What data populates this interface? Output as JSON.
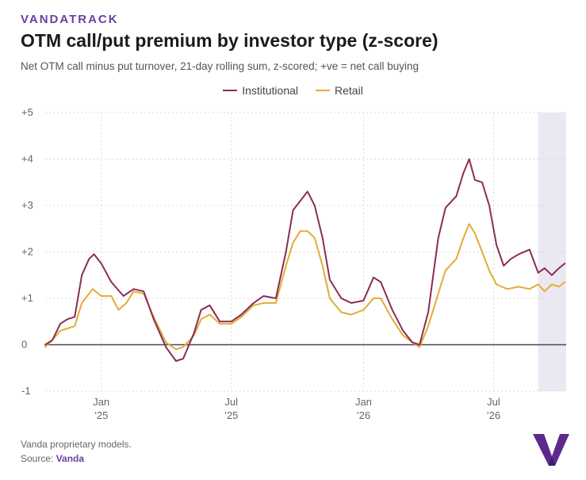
{
  "brand": "VANDATRACK",
  "chart_data": {
    "type": "line",
    "title": "OTM call/put premium by investor type (z-score)",
    "subtitle": "Net OTM call minus put turnover, 21-day rolling sum, z-scored; +ve = net call buying",
    "xlabel": "",
    "ylabel": "",
    "ylim": [
      -1,
      5
    ],
    "yticks": [
      "-1",
      "0",
      "+1",
      "+2",
      "+3",
      "+4",
      "+5"
    ],
    "yticks_values": [
      -1,
      0,
      1,
      2,
      3,
      4,
      5
    ],
    "xticks": [
      {
        "month": "Jan",
        "year": "’25",
        "date": "2025-01-01"
      },
      {
        "month": "Jul",
        "year": "’25",
        "date": "2025-07-01"
      },
      {
        "month": "Jan",
        "year": "’26",
        "date": "2026-01-01"
      },
      {
        "month": "Jul",
        "year": "’26",
        "date": "2026-07-01"
      }
    ],
    "xlim": [
      "2024-10-15",
      "2026-10-10"
    ],
    "grid": true,
    "legend_position": "top-center",
    "shaded_region": {
      "start": "2026-09-01",
      "end": "2026-10-10",
      "color": "#ece8f3"
    },
    "series": [
      {
        "name": "Institutional",
        "color": "#8a2d55",
        "points": [
          [
            "2024-10-15",
            0.0
          ],
          [
            "2024-10-25",
            0.1
          ],
          [
            "2024-11-05",
            0.45
          ],
          [
            "2024-11-15",
            0.55
          ],
          [
            "2024-11-25",
            0.6
          ],
          [
            "2024-12-05",
            1.5
          ],
          [
            "2024-12-15",
            1.85
          ],
          [
            "2024-12-22",
            1.95
          ],
          [
            "2025-01-01",
            1.75
          ],
          [
            "2025-01-15",
            1.35
          ],
          [
            "2025-02-01",
            1.05
          ],
          [
            "2025-02-15",
            1.2
          ],
          [
            "2025-03-01",
            1.15
          ],
          [
            "2025-03-15",
            0.55
          ],
          [
            "2025-04-01",
            -0.05
          ],
          [
            "2025-04-15",
            -0.35
          ],
          [
            "2025-04-25",
            -0.3
          ],
          [
            "2025-05-10",
            0.25
          ],
          [
            "2025-05-20",
            0.75
          ],
          [
            "2025-06-01",
            0.85
          ],
          [
            "2025-06-15",
            0.5
          ],
          [
            "2025-07-01",
            0.5
          ],
          [
            "2025-07-15",
            0.65
          ],
          [
            "2025-08-01",
            0.9
          ],
          [
            "2025-08-15",
            1.05
          ],
          [
            "2025-09-01",
            1.0
          ],
          [
            "2025-09-15",
            2.0
          ],
          [
            "2025-09-25",
            2.9
          ],
          [
            "2025-10-05",
            3.1
          ],
          [
            "2025-10-15",
            3.3
          ],
          [
            "2025-10-25",
            3.0
          ],
          [
            "2025-11-05",
            2.3
          ],
          [
            "2025-11-15",
            1.4
          ],
          [
            "2025-12-01",
            1.0
          ],
          [
            "2025-12-15",
            0.9
          ],
          [
            "2026-01-01",
            0.95
          ],
          [
            "2026-01-15",
            1.45
          ],
          [
            "2026-01-25",
            1.35
          ],
          [
            "2026-02-10",
            0.75
          ],
          [
            "2026-02-25",
            0.3
          ],
          [
            "2026-03-10",
            0.05
          ],
          [
            "2026-03-20",
            0.0
          ],
          [
            "2026-04-01",
            0.7
          ],
          [
            "2026-04-15",
            2.3
          ],
          [
            "2026-04-25",
            2.95
          ],
          [
            "2026-05-10",
            3.2
          ],
          [
            "2026-05-20",
            3.7
          ],
          [
            "2026-05-28",
            4.0
          ],
          [
            "2026-06-05",
            3.55
          ],
          [
            "2026-06-15",
            3.5
          ],
          [
            "2026-06-25",
            3.0
          ],
          [
            "2026-07-05",
            2.15
          ],
          [
            "2026-07-15",
            1.7
          ],
          [
            "2026-07-25",
            1.85
          ],
          [
            "2026-08-05",
            1.95
          ],
          [
            "2026-08-20",
            2.05
          ],
          [
            "2026-09-01",
            1.55
          ],
          [
            "2026-09-10",
            1.65
          ],
          [
            "2026-09-20",
            1.5
          ],
          [
            "2026-09-30",
            1.65
          ],
          [
            "2026-10-08",
            1.75
          ]
        ]
      },
      {
        "name": "Retail",
        "color": "#e3ac35",
        "points": [
          [
            "2024-10-15",
            -0.05
          ],
          [
            "2024-10-25",
            0.1
          ],
          [
            "2024-11-05",
            0.3
          ],
          [
            "2024-11-15",
            0.35
          ],
          [
            "2024-11-25",
            0.4
          ],
          [
            "2024-12-05",
            0.9
          ],
          [
            "2024-12-20",
            1.2
          ],
          [
            "2025-01-01",
            1.05
          ],
          [
            "2025-01-15",
            1.05
          ],
          [
            "2025-01-25",
            0.75
          ],
          [
            "2025-02-05",
            0.9
          ],
          [
            "2025-02-15",
            1.15
          ],
          [
            "2025-03-01",
            1.1
          ],
          [
            "2025-03-15",
            0.6
          ],
          [
            "2025-04-01",
            0.05
          ],
          [
            "2025-04-15",
            -0.1
          ],
          [
            "2025-04-25",
            -0.05
          ],
          [
            "2025-05-10",
            0.2
          ],
          [
            "2025-05-20",
            0.55
          ],
          [
            "2025-06-01",
            0.65
          ],
          [
            "2025-06-15",
            0.45
          ],
          [
            "2025-07-01",
            0.45
          ],
          [
            "2025-07-15",
            0.6
          ],
          [
            "2025-08-01",
            0.85
          ],
          [
            "2025-08-15",
            0.9
          ],
          [
            "2025-09-01",
            0.9
          ],
          [
            "2025-09-15",
            1.7
          ],
          [
            "2025-09-25",
            2.2
          ],
          [
            "2025-10-05",
            2.45
          ],
          [
            "2025-10-15",
            2.45
          ],
          [
            "2025-10-25",
            2.3
          ],
          [
            "2025-11-05",
            1.7
          ],
          [
            "2025-11-15",
            1.0
          ],
          [
            "2025-12-01",
            0.7
          ],
          [
            "2025-12-15",
            0.65
          ],
          [
            "2026-01-01",
            0.75
          ],
          [
            "2026-01-15",
            1.0
          ],
          [
            "2026-01-25",
            1.0
          ],
          [
            "2026-02-10",
            0.55
          ],
          [
            "2026-02-25",
            0.2
          ],
          [
            "2026-03-10",
            0.05
          ],
          [
            "2026-03-20",
            -0.05
          ],
          [
            "2026-04-01",
            0.4
          ],
          [
            "2026-04-15",
            1.1
          ],
          [
            "2026-04-25",
            1.6
          ],
          [
            "2026-05-10",
            1.85
          ],
          [
            "2026-05-20",
            2.3
          ],
          [
            "2026-05-28",
            2.6
          ],
          [
            "2026-06-05",
            2.4
          ],
          [
            "2026-06-15",
            2.0
          ],
          [
            "2026-06-25",
            1.6
          ],
          [
            "2026-07-05",
            1.3
          ],
          [
            "2026-07-20",
            1.2
          ],
          [
            "2026-08-05",
            1.25
          ],
          [
            "2026-08-20",
            1.2
          ],
          [
            "2026-09-01",
            1.3
          ],
          [
            "2026-09-10",
            1.15
          ],
          [
            "2026-09-20",
            1.3
          ],
          [
            "2026-09-30",
            1.25
          ],
          [
            "2026-10-08",
            1.35
          ]
        ]
      }
    ]
  },
  "footnote": "Vanda proprietary models.",
  "source_label": "Source:",
  "source_name": "Vanda",
  "colors": {
    "brand": "#6b3fa0",
    "zero_line": "#4a4458",
    "grid": "#d9d9d9"
  }
}
